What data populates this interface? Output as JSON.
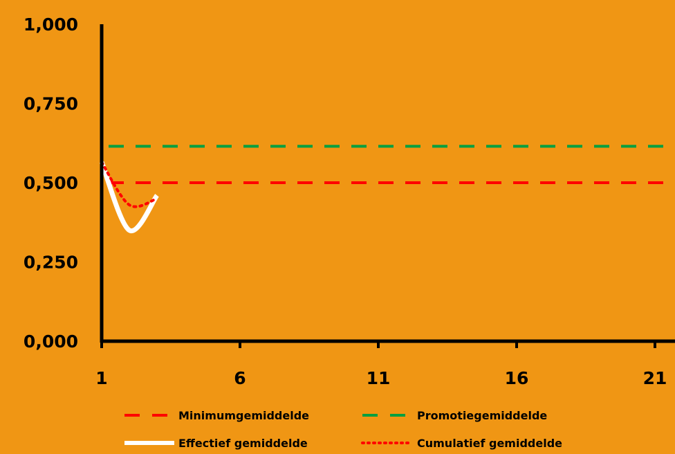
{
  "chart_data": {
    "type": "line",
    "title": "",
    "xlabel": "",
    "ylabel": "",
    "background": "#F09614",
    "xlim": [
      1,
      21
    ],
    "ylim": [
      0,
      1
    ],
    "x_ticks": [
      1,
      6,
      11,
      16,
      21
    ],
    "x_tick_labels": [
      "1",
      "6",
      "11",
      "16",
      "21"
    ],
    "y_ticks": [
      0,
      0.25,
      0.5,
      0.75,
      1
    ],
    "y_tick_labels": [
      "0,000",
      "0,250",
      "0,500",
      "0,750",
      "1,000"
    ],
    "grid": false,
    "legend_position": "bottom",
    "series": [
      {
        "name": "Minimumgemiddelde",
        "color": "#FF0000",
        "style": "dashed",
        "x": [
          1,
          21
        ],
        "y": [
          0.5,
          0.5
        ]
      },
      {
        "name": "Promotiegemiddelde",
        "color": "#00A040",
        "style": "dashed",
        "x": [
          1,
          21
        ],
        "y": [
          0.615,
          0.615
        ]
      },
      {
        "name": "Effectief gemiddelde",
        "color": "#FFFFFF",
        "style": "solid",
        "x": [
          1,
          2,
          3
        ],
        "y": [
          0.565,
          0.35,
          0.46
        ]
      },
      {
        "name": "Cumulatief gemiddelde",
        "color": "#FF0000",
        "style": "dotted",
        "x": [
          1,
          2,
          3
        ],
        "y": [
          0.565,
          0.43,
          0.45
        ]
      }
    ]
  }
}
